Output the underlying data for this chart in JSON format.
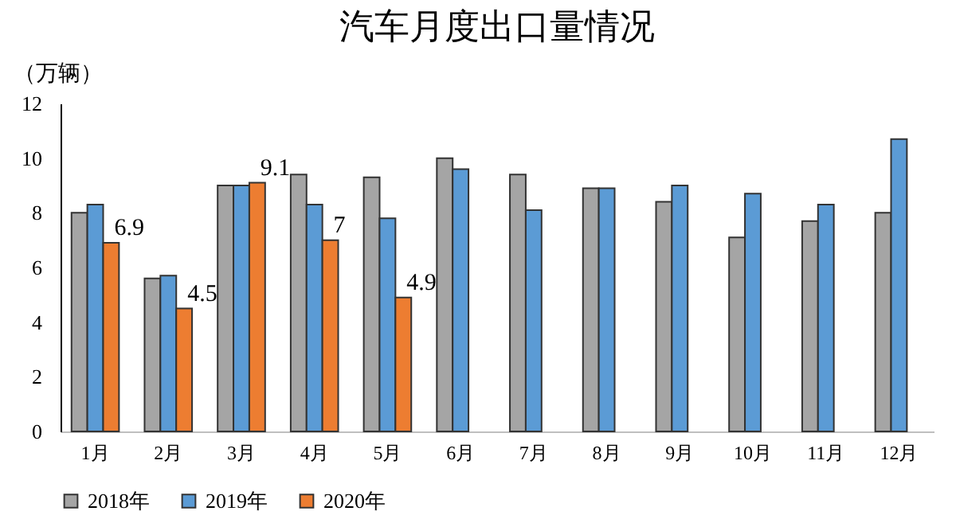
{
  "chart_data": {
    "type": "bar",
    "title": "汽车月度出口量情况",
    "ylabel": "（万辆）",
    "categories": [
      "1月",
      "2月",
      "3月",
      "4月",
      "5月",
      "6月",
      "7月",
      "8月",
      "9月",
      "10月",
      "11月",
      "12月"
    ],
    "series": [
      {
        "name": "2018年",
        "color": "#a5a5a5",
        "values": [
          8.0,
          5.6,
          9.0,
          9.4,
          9.3,
          10.0,
          9.4,
          8.9,
          8.4,
          7.1,
          7.7,
          8.0
        ]
      },
      {
        "name": "2019年",
        "color": "#5b9bd5",
        "values": [
          8.3,
          5.7,
          9.0,
          8.3,
          7.8,
          9.6,
          8.1,
          8.9,
          9.0,
          8.7,
          8.3,
          10.7
        ]
      },
      {
        "name": "2020年",
        "color": "#ed7d31",
        "values": [
          6.9,
          4.5,
          9.1,
          7,
          4.9,
          null,
          null,
          null,
          null,
          null,
          null,
          null
        ],
        "value_labels": [
          "6.9",
          "4.5",
          "9.1",
          "7",
          "4.9",
          null,
          null,
          null,
          null,
          null,
          null,
          null
        ]
      }
    ],
    "ylim": [
      0,
      12
    ],
    "yticks": [
      0,
      2,
      4,
      6,
      8,
      10,
      12
    ],
    "grid": false,
    "legend": "bottom"
  }
}
